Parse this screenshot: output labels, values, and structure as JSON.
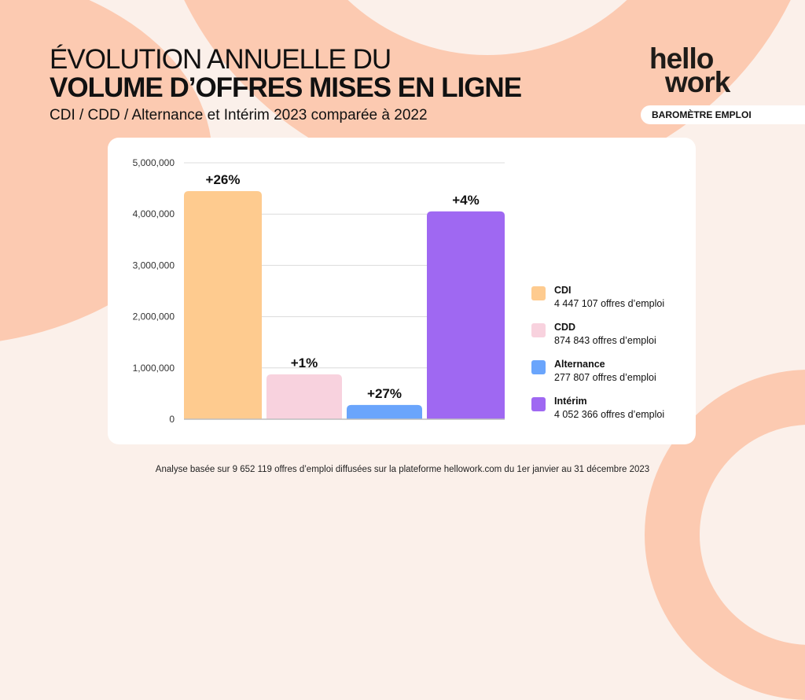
{
  "header": {
    "title_line1": "ÉVOLUTION ANNUELLE DU",
    "title_line2": "VOLUME D’OFFRES MISES EN LIGNE",
    "subtitle": "CDI / CDD / Alternance et Intérim 2023 comparée à 2022"
  },
  "brand": {
    "logo_line1": "hello",
    "logo_line2": "work",
    "badge": "BAROMÈTRE EMPLOI"
  },
  "footer": "Analyse basée sur 9 652 119 offres d’emploi diffusées sur la plateforme hellowork.com du 1er janvier au 31 décembre 2023",
  "chart_data": {
    "type": "bar",
    "title": "ÉVOLUTION ANNUELLE DU VOLUME D’OFFRES MISES EN LIGNE",
    "subtitle": "CDI / CDD / Alternance et Intérim 2023 comparée à 2022",
    "xlabel": "",
    "ylabel": "",
    "ylim": [
      0,
      5000000
    ],
    "yticks": [
      0,
      1000000,
      2000000,
      3000000,
      4000000,
      5000000
    ],
    "ytick_labels": [
      "0",
      "1,000,000",
      "2,000,000",
      "3,000,000",
      "4,000,000",
      "5,000,000"
    ],
    "grid": true,
    "legend_position": "right",
    "categories": [
      "CDI",
      "CDD",
      "Alternance",
      "Intérim"
    ],
    "values": [
      4447107,
      874843,
      277807,
      4052366
    ],
    "data_labels": [
      "+26%",
      "+1%",
      "+27%",
      "+4%"
    ],
    "colors": [
      "#fecb8f",
      "#f8d2de",
      "#6aa5fc",
      "#9f68f2"
    ],
    "legend": [
      {
        "name": "CDI",
        "detail": "4 447 107 offres d’emploi"
      },
      {
        "name": "CDD",
        "detail": "874 843 offres d’emploi"
      },
      {
        "name": "Alternance",
        "detail": "277 807 offres d’emploi"
      },
      {
        "name": "Intérim",
        "detail": "4 052 366 offres d’emploi"
      }
    ]
  }
}
